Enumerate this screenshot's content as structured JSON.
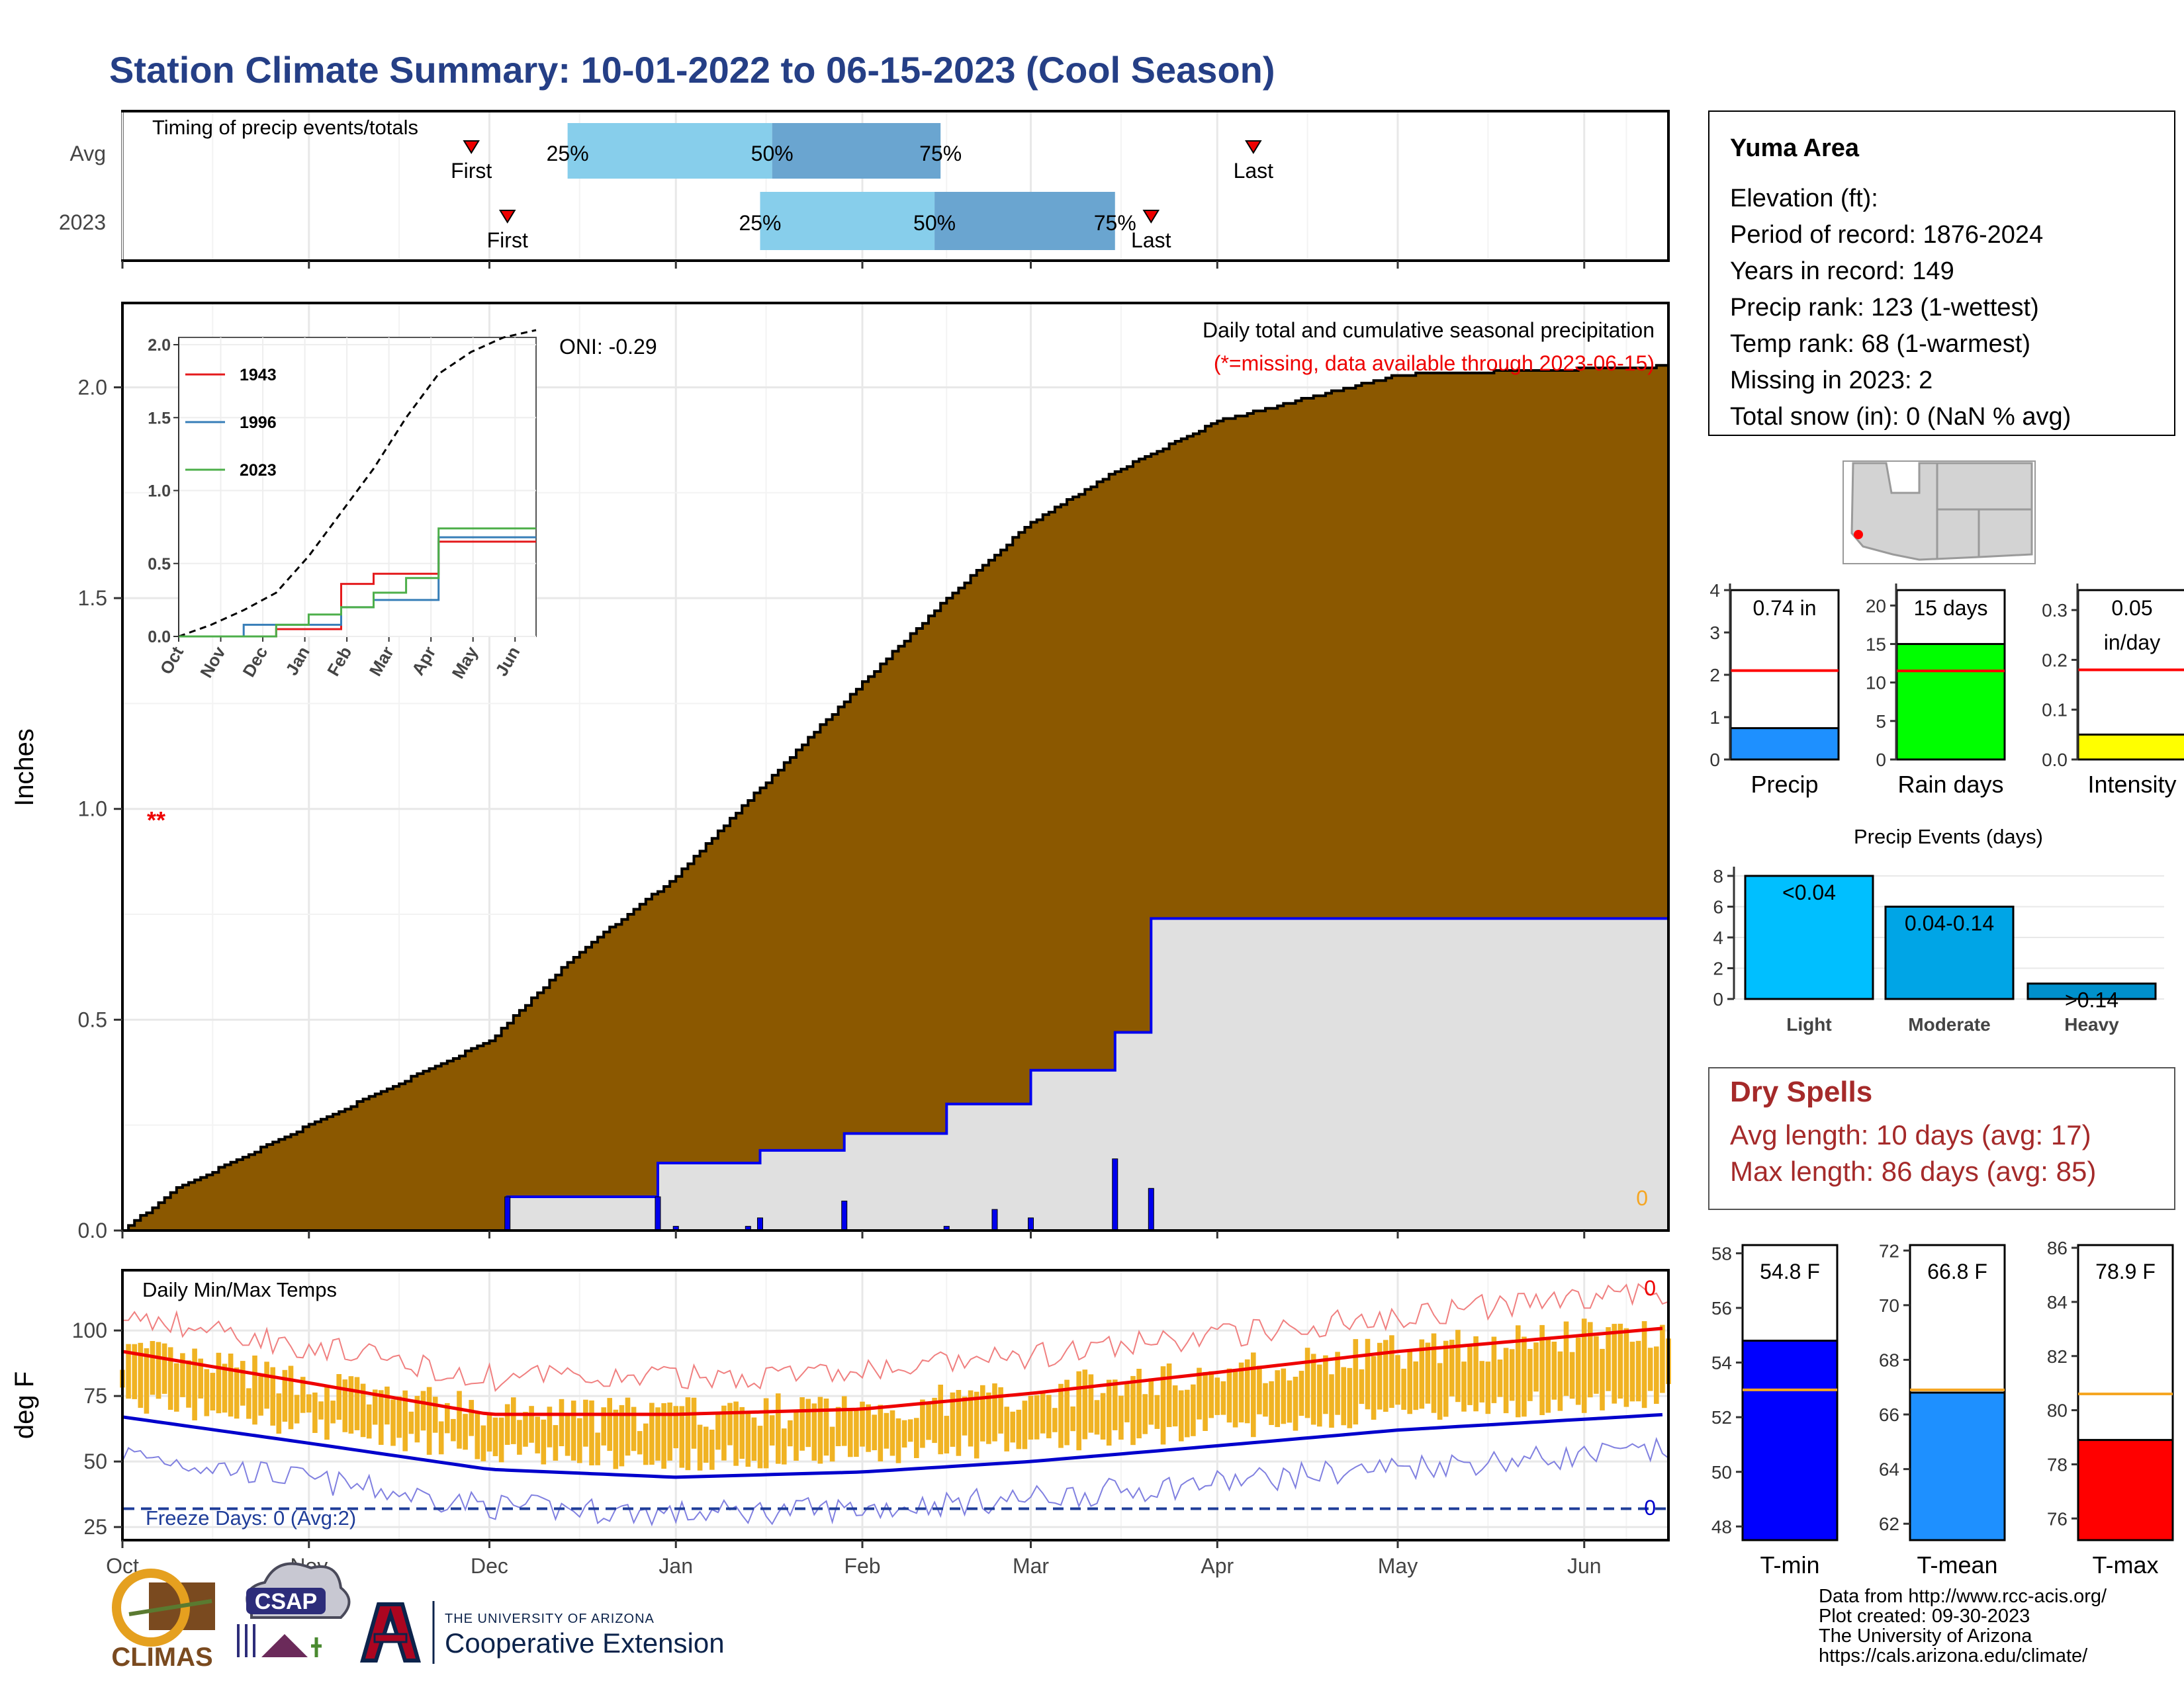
{
  "title": "Station Climate Summary: 10-01-2022 to 06-15-2023 (Cool Season)",
  "colors": {
    "title": "#253f86",
    "precip_fill": "#8b5800",
    "obs_fill": "#e0e0e0",
    "obs_line": "#0000ee",
    "q_light": "#87ceeb",
    "q_dark": "#6aa5d0",
    "temp_bar": "#f0b323",
    "avg_max": "#ee0000",
    "avg_min": "#0000cc",
    "freeze_line": "#1f3d99",
    "dry_spells": "#a52a2a"
  },
  "timing": {
    "label": "Timing of precip events/totals",
    "rows": [
      {
        "name": "Avg",
        "first": "First",
        "last": "Last",
        "q25": "25%",
        "q50": "50%",
        "q75": "75%",
        "first_x": "2022-11-28",
        "q25_x": "2022-12-14",
        "q50_x": "2023-01-17",
        "q75_x": "2023-02-14",
        "last_x": "2023-04-07"
      },
      {
        "name": "2023",
        "first": "First",
        "last": "Last",
        "q25": "25%",
        "q50": "50%",
        "q75": "75%",
        "first_x": "2022-12-04",
        "q25_x": "2023-01-15",
        "q50_x": "2023-02-13",
        "q75_x": "2023-03-15",
        "last_x": "2023-03-21"
      }
    ]
  },
  "main": {
    "subtitle": "Daily total and cumulative seasonal precipitation",
    "missing_note": "(*=missing, data available through 2023-06-15)",
    "oni": "ONI: -0.29",
    "missing_marks": "**",
    "corner_count": "0",
    "ylabel": "Inches",
    "yticks": [
      "0.0",
      "0.5",
      "1.0",
      "1.5",
      "2.0"
    ],
    "inset": {
      "yticks": [
        "0.0",
        "0.5",
        "1.0",
        "1.5",
        "2.0"
      ],
      "xticks": [
        "Oct",
        "Nov",
        "Dec",
        "Jan",
        "Feb",
        "Mar",
        "Apr",
        "May",
        "Jun"
      ],
      "legend": [
        {
          "name": "1943",
          "color": "#e41a1c"
        },
        {
          "name": "1996",
          "color": "#377eb8"
        },
        {
          "name": "2023",
          "color": "#4daf4a"
        }
      ]
    }
  },
  "temps": {
    "label": "Daily Min/Max Temps",
    "ylabel": "deg F",
    "yticks": [
      "25",
      "50",
      "75",
      "100"
    ],
    "freeze_label": "Freeze Days: 0 (Avg:2)",
    "count_top": "0",
    "count_bottom": "0",
    "xticks": [
      "Oct",
      "Nov",
      "Dec",
      "Jan",
      "Feb",
      "Mar",
      "Apr",
      "May",
      "Jun"
    ]
  },
  "station": {
    "name": "Yuma Area",
    "lines": [
      "Elevation (ft):",
      "Period of record: 1876-2024",
      "Years in record: 149",
      "Precip rank: 123 (1-wettest)",
      "Temp rank: 68 (1-warmest)",
      "Missing in 2023: 2",
      "Total snow (in): 0 (NaN % avg)"
    ]
  },
  "precip_stats": [
    {
      "label": "Precip",
      "value_label": "0.74 in",
      "value": 0.74,
      "avg": 2.1,
      "max": 4,
      "yticks": [
        "0",
        "1",
        "2",
        "3",
        "4"
      ],
      "color": "#1e90ff"
    },
    {
      "label": "Rain days",
      "value_label": "15 days",
      "value": 15,
      "avg": 11.5,
      "max": 22,
      "yticks": [
        "0",
        "5",
        "10",
        "15",
        "20"
      ],
      "color": "#00ff00"
    },
    {
      "label": "Intensity",
      "value_label": "0.05",
      "value_label2": "in/day",
      "value": 0.05,
      "avg": 0.18,
      "max": 0.34,
      "yticks": [
        "0.0",
        "0.1",
        "0.2",
        "0.3"
      ],
      "color": "#ffff00"
    }
  ],
  "events": {
    "title": "Precip Events (days)",
    "yticks": [
      "0",
      "2",
      "4",
      "6",
      "8"
    ],
    "bars": [
      {
        "label": "Light",
        "range": "<0.04",
        "value": 8,
        "color": "#00bfff"
      },
      {
        "label": "Moderate",
        "range": "0.04-0.14",
        "value": 6,
        "color": "#00a5e6"
      },
      {
        "label": "Heavy",
        "range": ">0.14",
        "value": 1,
        "color": "#0090cc"
      }
    ]
  },
  "dry_spells": {
    "title": "Dry Spells",
    "avg": "Avg length: 10 days (avg: 17)",
    "max": "Max length: 86 days (avg: 85)"
  },
  "temp_stats": [
    {
      "label": "T-min",
      "value_label": "54.8 F",
      "value": 54.8,
      "avg": 53.0,
      "min": 47.5,
      "max": 58.3,
      "yticks": [
        "48",
        "50",
        "52",
        "54",
        "56",
        "58"
      ],
      "color": "#0000ff"
    },
    {
      "label": "T-mean",
      "value_label": "66.8 F",
      "value": 66.8,
      "avg": 66.9,
      "min": 61.4,
      "max": 72.2,
      "yticks": [
        "62",
        "64",
        "66",
        "68",
        "70",
        "72"
      ],
      "color": "#1e90ff"
    },
    {
      "label": "T-max",
      "value_label": "78.9 F",
      "value": 78.9,
      "avg": 80.6,
      "min": 75.2,
      "max": 86.1,
      "yticks": [
        "76",
        "78",
        "80",
        "82",
        "84",
        "86"
      ],
      "color": "#ff0000"
    }
  ],
  "credits": [
    "Data from http://www.rcc-acis.org/",
    "Plot created: 09-30-2023",
    "The University of Arizona",
    "https://cals.arizona.edu/climate/"
  ],
  "logos": {
    "climas": "CLIMAS",
    "csap": "CSAP",
    "ua_small": "THE UNIVERSITY OF ARIZONA",
    "ua_ext": "Cooperative Extension"
  },
  "chart_data": [
    {
      "type": "area",
      "title": "Daily total and cumulative seasonal precipitation",
      "ylabel": "Inches",
      "ylim": [
        0,
        2.2
      ],
      "series": [
        {
          "name": "",
          "x": [
            "2022-10-01",
            "2022-10-10",
            "2022-11-01",
            "2022-12-01",
            "2022-12-15",
            "2023-01-01",
            "2023-01-15",
            "2023-02-01",
            "2023-02-15",
            "2023-03-01",
            "2023-03-15",
            "2023-04-01",
            "2023-05-01",
            "2023-06-15"
          ],
          "values": [
            0,
            0.1,
            0.25,
            0.45,
            0.65,
            0.84,
            1.05,
            1.3,
            1.5,
            1.68,
            1.8,
            1.92,
            2.03,
            2.05
          ]
        },
        {
          "name": "",
          "x": [
            "2022-10-01",
            "2022-12-04",
            "2022-12-29",
            "2023-01-15",
            "2023-01-29",
            "2023-02-15",
            "2023-03-01",
            "2023-03-15",
            "2023-03-21",
            "2023-06-15"
          ],
          "values": [
            0,
            0.08,
            0.16,
            0.19,
            0.23,
            0.3,
            0.38,
            0.47,
            0.74,
            0.74
          ]
        }
      ],
      "daily_bars": {
        "x": [
          "2022-12-04",
          "2022-12-29",
          "2023-01-01",
          "2023-01-13",
          "2023-01-15",
          "2023-01-29",
          "2023-02-15",
          "2023-02-23",
          "2023-03-01",
          "2023-03-15",
          "2023-03-21"
        ],
        "values": [
          0.08,
          0.08,
          0.01,
          0.01,
          0.03,
          0.07,
          0.01,
          0.05,
          0.03,
          0.17,
          0.1
        ]
      },
      "inset": {
        "xlim_months": [
          "Oct",
          "Nov",
          "Dec",
          "Jan",
          "Feb",
          "Mar",
          "Apr",
          "May",
          "Jun"
        ],
        "ylim": [
          0,
          2.0
        ],
        "avg_cumulative": [
          0,
          0.08,
          0.18,
          0.3,
          0.55,
          0.85,
          1.15,
          1.5,
          1.8,
          1.95,
          2.05,
          2.1
        ],
        "series": [
          {
            "name": "1943",
            "values": [
              0,
              0,
              0,
              0.05,
              0.05,
              0.36,
              0.43,
              0.43,
              0.65,
              0.65,
              0.65,
              0.65
            ]
          },
          {
            "name": "1996",
            "values": [
              0,
              0,
              0.08,
              0.08,
              0.08,
              0.2,
              0.25,
              0.25,
              0.68,
              0.68,
              0.68,
              0.68
            ]
          },
          {
            "name": "2023",
            "values": [
              0,
              0,
              0,
              0.08,
              0.15,
              0.2,
              0.3,
              0.4,
              0.74,
              0.74,
              0.74,
              0.74
            ]
          }
        ]
      }
    },
    {
      "type": "bar",
      "title": "Daily Min/Max Temps",
      "ylabel": "deg F",
      "ylim": [
        20,
        123
      ],
      "avg_max": {
        "x": [
          "2022-10-01",
          "2022-11-01",
          "2022-12-01",
          "2023-01-01",
          "2023-02-01",
          "2023-03-01",
          "2023-04-01",
          "2023-05-01",
          "2023-06-15"
        ],
        "values": [
          92,
          80,
          68,
          68,
          70,
          76,
          84,
          92,
          101
        ]
      },
      "avg_min": {
        "x": [
          "2022-10-01",
          "2022-11-01",
          "2022-12-01",
          "2023-01-01",
          "2023-02-01",
          "2023-03-01",
          "2023-04-01",
          "2023-05-01",
          "2023-06-15"
        ],
        "values": [
          67,
          57,
          47,
          44,
          46,
          50,
          56,
          62,
          68
        ]
      },
      "freeze_line": 32
    }
  ]
}
